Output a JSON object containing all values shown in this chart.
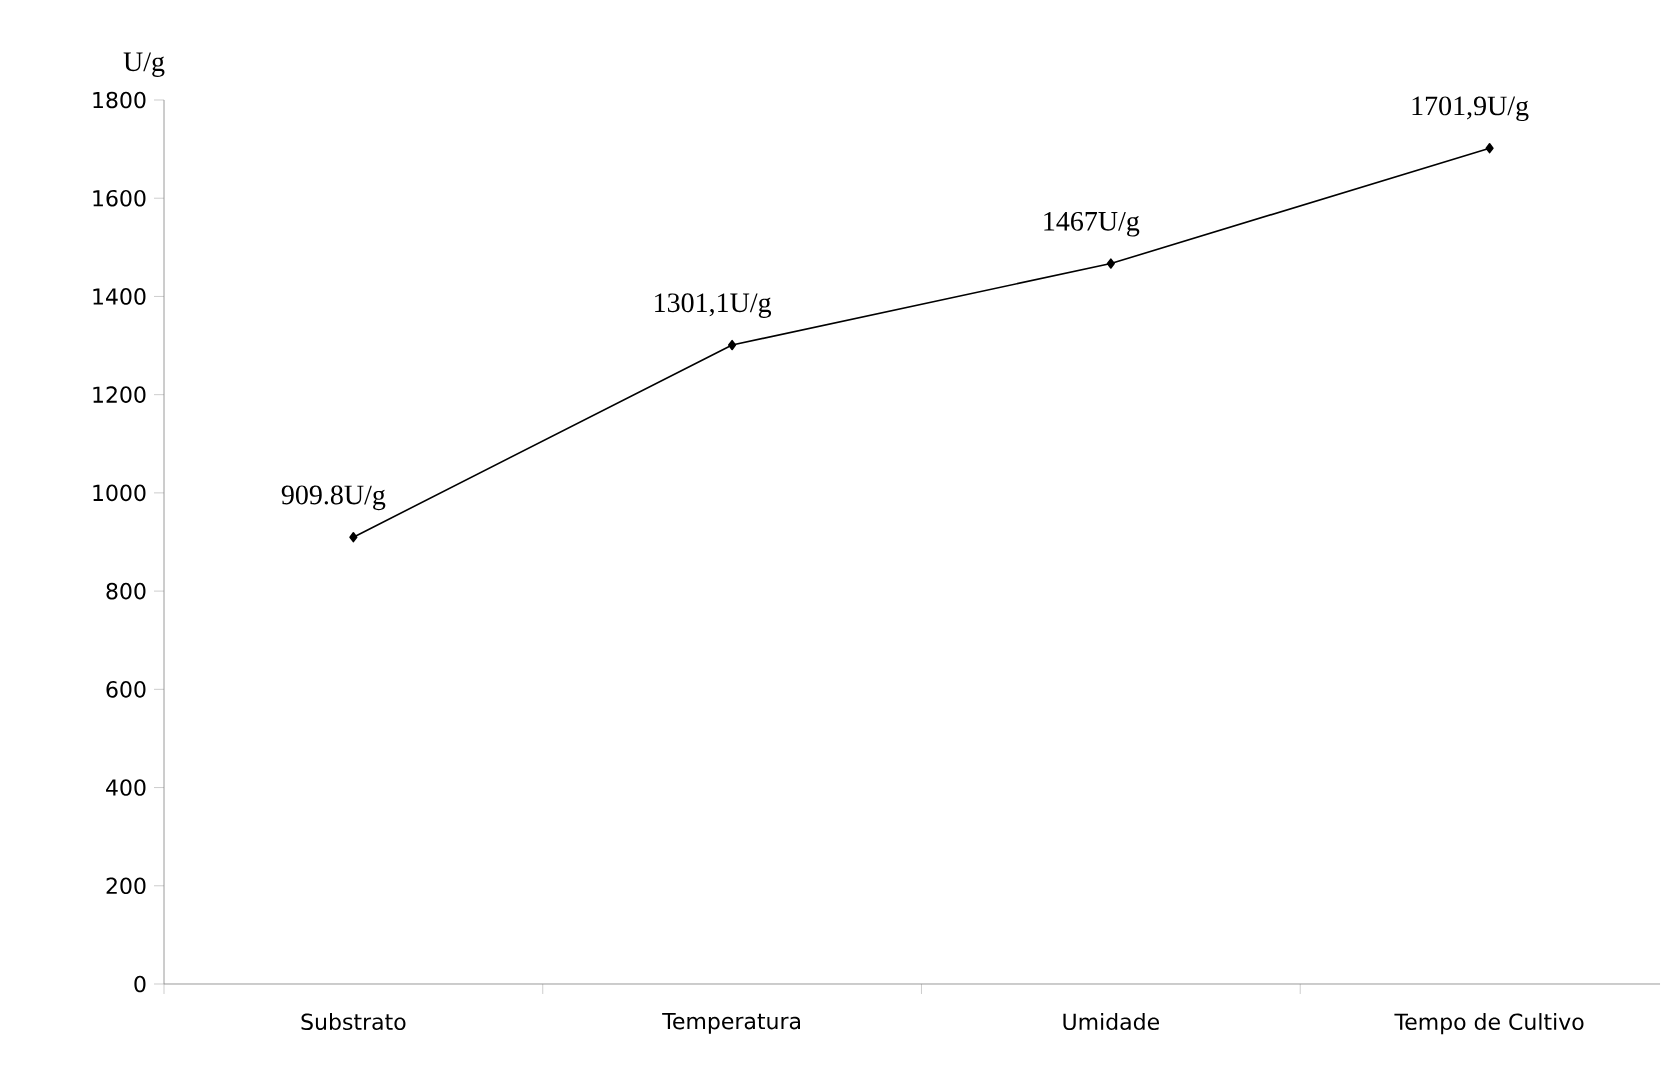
{
  "chart_data": {
    "type": "line",
    "ylabel": "U/g",
    "categories": [
      "Substrato",
      "Temperatura",
      "Umidade",
      "Tempo de Cultivo"
    ],
    "values": [
      909.8,
      1301.1,
      1467,
      1701.9
    ],
    "value_labels": [
      "909.8U/g",
      "1301,1U/g",
      "1467U/g",
      "1701,9U/g"
    ],
    "color": "#000000",
    "marker": "diamond",
    "ylim": [
      0,
      1800
    ],
    "yticks": [
      0,
      200,
      400,
      600,
      800,
      1000,
      1200,
      1400,
      1600,
      1800
    ],
    "grid": false
  }
}
